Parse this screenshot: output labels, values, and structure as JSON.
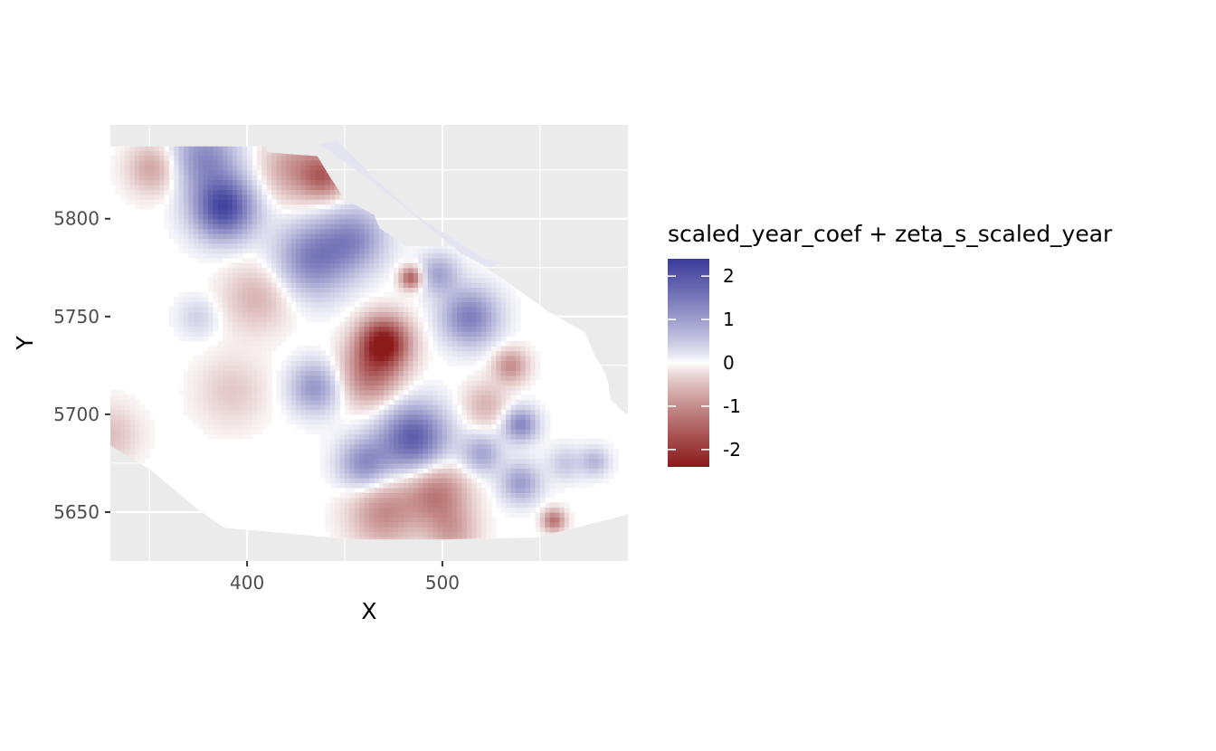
{
  "chart_data": {
    "type": "heatmap",
    "xlabel": "X",
    "ylabel": "Y",
    "xlim": [
      330,
      595
    ],
    "ylim": [
      5625,
      5848
    ],
    "x_ticks": [
      400,
      500
    ],
    "x_minor": [
      350,
      450,
      550
    ],
    "y_ticks": [
      5650,
      5700,
      5750,
      5800
    ],
    "y_minor": [
      5675,
      5725,
      5775,
      5825
    ],
    "grid": true,
    "legend": {
      "title": "scaled_year_coef + zeta_s_scaled_year",
      "placement": "right",
      "range": [
        -2.4,
        2.4
      ],
      "ticks": [
        {
          "value": 2,
          "label": "2"
        },
        {
          "value": 1,
          "label": "1"
        },
        {
          "value": 0,
          "label": "0"
        },
        {
          "value": -1,
          "label": "-1"
        },
        {
          "value": -2,
          "label": "-2"
        }
      ],
      "colors": {
        "low": "#8b1a1a",
        "mid": "#ffffff",
        "high": "#3b3b9a"
      }
    },
    "domain_polygon": [
      [
        342,
        5837
      ],
      [
        410,
        5837
      ],
      [
        410,
        5834
      ],
      [
        436,
        5832
      ],
      [
        442,
        5822
      ],
      [
        450,
        5810
      ],
      [
        465,
        5802
      ],
      [
        468,
        5795
      ],
      [
        476,
        5790
      ],
      [
        481,
        5786
      ],
      [
        505,
        5786
      ],
      [
        530,
        5770
      ],
      [
        555,
        5752
      ],
      [
        573,
        5742
      ],
      [
        578,
        5730
      ],
      [
        583,
        5722
      ],
      [
        585,
        5716
      ],
      [
        586,
        5708
      ],
      [
        594,
        5700
      ],
      [
        600,
        5692
      ],
      [
        608,
        5686
      ],
      [
        622,
        5676
      ],
      [
        640,
        5668
      ],
      [
        650,
        5660
      ],
      [
        652,
        5652
      ],
      [
        600,
        5650
      ],
      [
        548,
        5637
      ],
      [
        500,
        5636
      ],
      [
        455,
        5636
      ],
      [
        388,
        5642
      ],
      [
        374,
        5652
      ],
      [
        362,
        5662
      ],
      [
        350,
        5672
      ],
      [
        330,
        5684
      ],
      [
        318,
        5700
      ],
      [
        312,
        5712
      ],
      [
        305,
        5722
      ],
      [
        296,
        5728
      ],
      [
        286,
        5730
      ],
      [
        272,
        5728
      ],
      [
        264,
        5724
      ],
      [
        255,
        5728
      ],
      [
        238,
        5732
      ],
      [
        225,
        5738
      ],
      [
        210,
        5752
      ],
      [
        204,
        5770
      ],
      [
        198,
        5782
      ],
      [
        186,
        5800
      ],
      [
        178,
        5812
      ],
      [
        168,
        5822
      ],
      [
        162,
        5830
      ],
      [
        150,
        5837
      ]
    ],
    "strip_polygon": [
      [
        437,
        5838
      ],
      [
        446,
        5840
      ],
      [
        466,
        5820
      ],
      [
        486,
        5802
      ],
      [
        505,
        5790
      ],
      [
        520,
        5780
      ],
      [
        530,
        5778
      ],
      [
        525,
        5775
      ],
      [
        510,
        5782
      ],
      [
        495,
        5794
      ],
      [
        478,
        5808
      ],
      [
        460,
        5822
      ]
    ],
    "field_centers": [
      {
        "x": 388,
        "y": 5806,
        "value": 2.2,
        "spread": 11
      },
      {
        "x": 378,
        "y": 5832,
        "value": 1.2,
        "spread": 12
      },
      {
        "x": 352,
        "y": 5826,
        "value": -0.8,
        "spread": 9
      },
      {
        "x": 425,
        "y": 5826,
        "value": -0.9,
        "spread": 12
      },
      {
        "x": 440,
        "y": 5822,
        "value": -1.2,
        "spread": 8
      },
      {
        "x": 465,
        "y": 5830,
        "value": 0.3,
        "spread": 6
      },
      {
        "x": 434,
        "y": 5780,
        "value": 1.4,
        "spread": 13
      },
      {
        "x": 455,
        "y": 5790,
        "value": 1.1,
        "spread": 11
      },
      {
        "x": 405,
        "y": 5760,
        "value": -0.6,
        "spread": 12
      },
      {
        "x": 470,
        "y": 5737,
        "value": -2.4,
        "spread": 9
      },
      {
        "x": 463,
        "y": 5720,
        "value": -1.2,
        "spread": 11
      },
      {
        "x": 484,
        "y": 5770,
        "value": -1.6,
        "spread": 4
      },
      {
        "x": 514,
        "y": 5750,
        "value": 1.4,
        "spread": 10
      },
      {
        "x": 498,
        "y": 5772,
        "value": 0.9,
        "spread": 7
      },
      {
        "x": 535,
        "y": 5725,
        "value": -1.0,
        "spread": 6
      },
      {
        "x": 435,
        "y": 5714,
        "value": 1.1,
        "spread": 9
      },
      {
        "x": 375,
        "y": 5750,
        "value": 0.4,
        "spread": 7
      },
      {
        "x": 392,
        "y": 5712,
        "value": -0.4,
        "spread": 12
      },
      {
        "x": 485,
        "y": 5688,
        "value": 1.9,
        "spread": 12
      },
      {
        "x": 460,
        "y": 5675,
        "value": 1.2,
        "spread": 9
      },
      {
        "x": 497,
        "y": 5660,
        "value": -1.2,
        "spread": 11
      },
      {
        "x": 470,
        "y": 5650,
        "value": -1.0,
        "spread": 12
      },
      {
        "x": 505,
        "y": 5640,
        "value": -0.7,
        "spread": 9
      },
      {
        "x": 520,
        "y": 5680,
        "value": 0.9,
        "spread": 7
      },
      {
        "x": 540,
        "y": 5695,
        "value": 1.3,
        "spread": 6
      },
      {
        "x": 540,
        "y": 5665,
        "value": 1.0,
        "spread": 7
      },
      {
        "x": 557,
        "y": 5646,
        "value": -1.3,
        "spread": 4
      },
      {
        "x": 563,
        "y": 5675,
        "value": 0.5,
        "spread": 6
      },
      {
        "x": 578,
        "y": 5676,
        "value": 0.7,
        "spread": 5
      },
      {
        "x": 330,
        "y": 5690,
        "value": -0.5,
        "spread": 10
      },
      {
        "x": 522,
        "y": 5705,
        "value": -0.6,
        "spread": 8
      }
    ]
  }
}
